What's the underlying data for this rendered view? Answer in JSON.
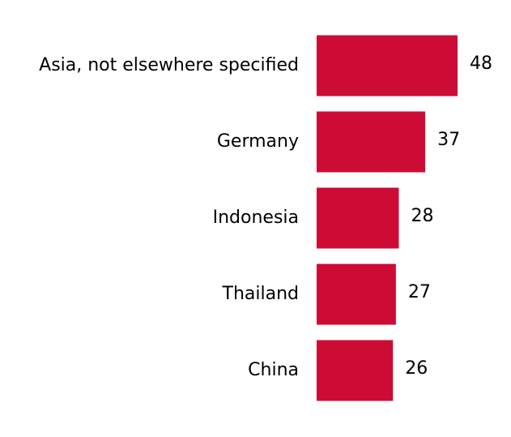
{
  "chart_data": {
    "type": "bar",
    "orientation": "horizontal",
    "categories": [
      "Asia, not elsewhere specified",
      "Germany",
      "Indonesia",
      "Thailand",
      "China"
    ],
    "values": [
      48,
      37,
      28,
      27,
      26
    ],
    "color": "#cc0c35"
  }
}
